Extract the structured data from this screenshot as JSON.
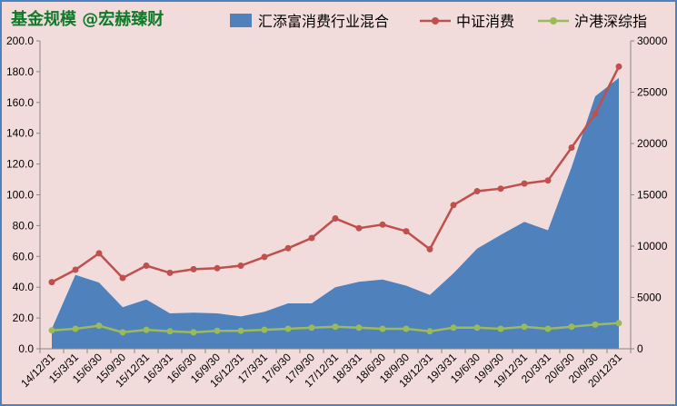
{
  "chart_data": {
    "type": "line",
    "title": "基金规模 @宏赫臻财",
    "categories": [
      "14/12/31",
      "15/3/31",
      "15/6/30",
      "15/9/30",
      "15/12/31",
      "16/3/31",
      "16/6/30",
      "16/9/30",
      "16/12/31",
      "17/3/31",
      "17/6/30",
      "17/9/30",
      "17/12/31",
      "18/3/31",
      "18/6/30",
      "18/9/30",
      "18/12/31",
      "19/3/31",
      "19/6/30",
      "19/9/30",
      "19/12/31",
      "20/3/31",
      "20/6/30",
      "20/9/30",
      "20/12/31"
    ],
    "left_axis": {
      "min": 0,
      "max": 200,
      "step": 20,
      "labels": [
        "0.0",
        "20.0",
        "40.0",
        "60.0",
        "80.0",
        "100.0",
        "120.0",
        "140.0",
        "160.0",
        "180.0",
        "200.0"
      ]
    },
    "right_axis": {
      "min": 0,
      "max": 30000,
      "step": 5000,
      "labels": [
        "0",
        "5000",
        "10000",
        "15000",
        "20000",
        "25000",
        "30000"
      ]
    },
    "series": [
      {
        "name": "汇添富消费行业混合",
        "kind": "area",
        "axis": "left",
        "color": "#4f81bd",
        "values": [
          13,
          48,
          43,
          27,
          32,
          23,
          23.5,
          23,
          21,
          24,
          29.5,
          29.5,
          40,
          43.5,
          45,
          41,
          35,
          49,
          65,
          74,
          82.5,
          77,
          118,
          164,
          176
        ]
      },
      {
        "name": "中证消费",
        "kind": "line",
        "axis": "right",
        "color": "#c0504d",
        "values": [
          6500,
          7700,
          9300,
          6900,
          8100,
          7400,
          7750,
          7850,
          8100,
          8950,
          9800,
          10800,
          12700,
          11750,
          12100,
          11450,
          9700,
          14000,
          15350,
          15600,
          16100,
          16400,
          19600,
          22900,
          27500
        ]
      },
      {
        "name": "沪港深综指",
        "kind": "line",
        "axis": "right",
        "color": "#9bbb59",
        "values": [
          1800,
          1950,
          2250,
          1600,
          1850,
          1700,
          1600,
          1750,
          1750,
          1850,
          1950,
          2050,
          2150,
          2050,
          1950,
          1950,
          1700,
          2050,
          2050,
          1950,
          2150,
          1950,
          2150,
          2350,
          2500
        ]
      }
    ],
    "legend_position": "top",
    "grid": false
  }
}
